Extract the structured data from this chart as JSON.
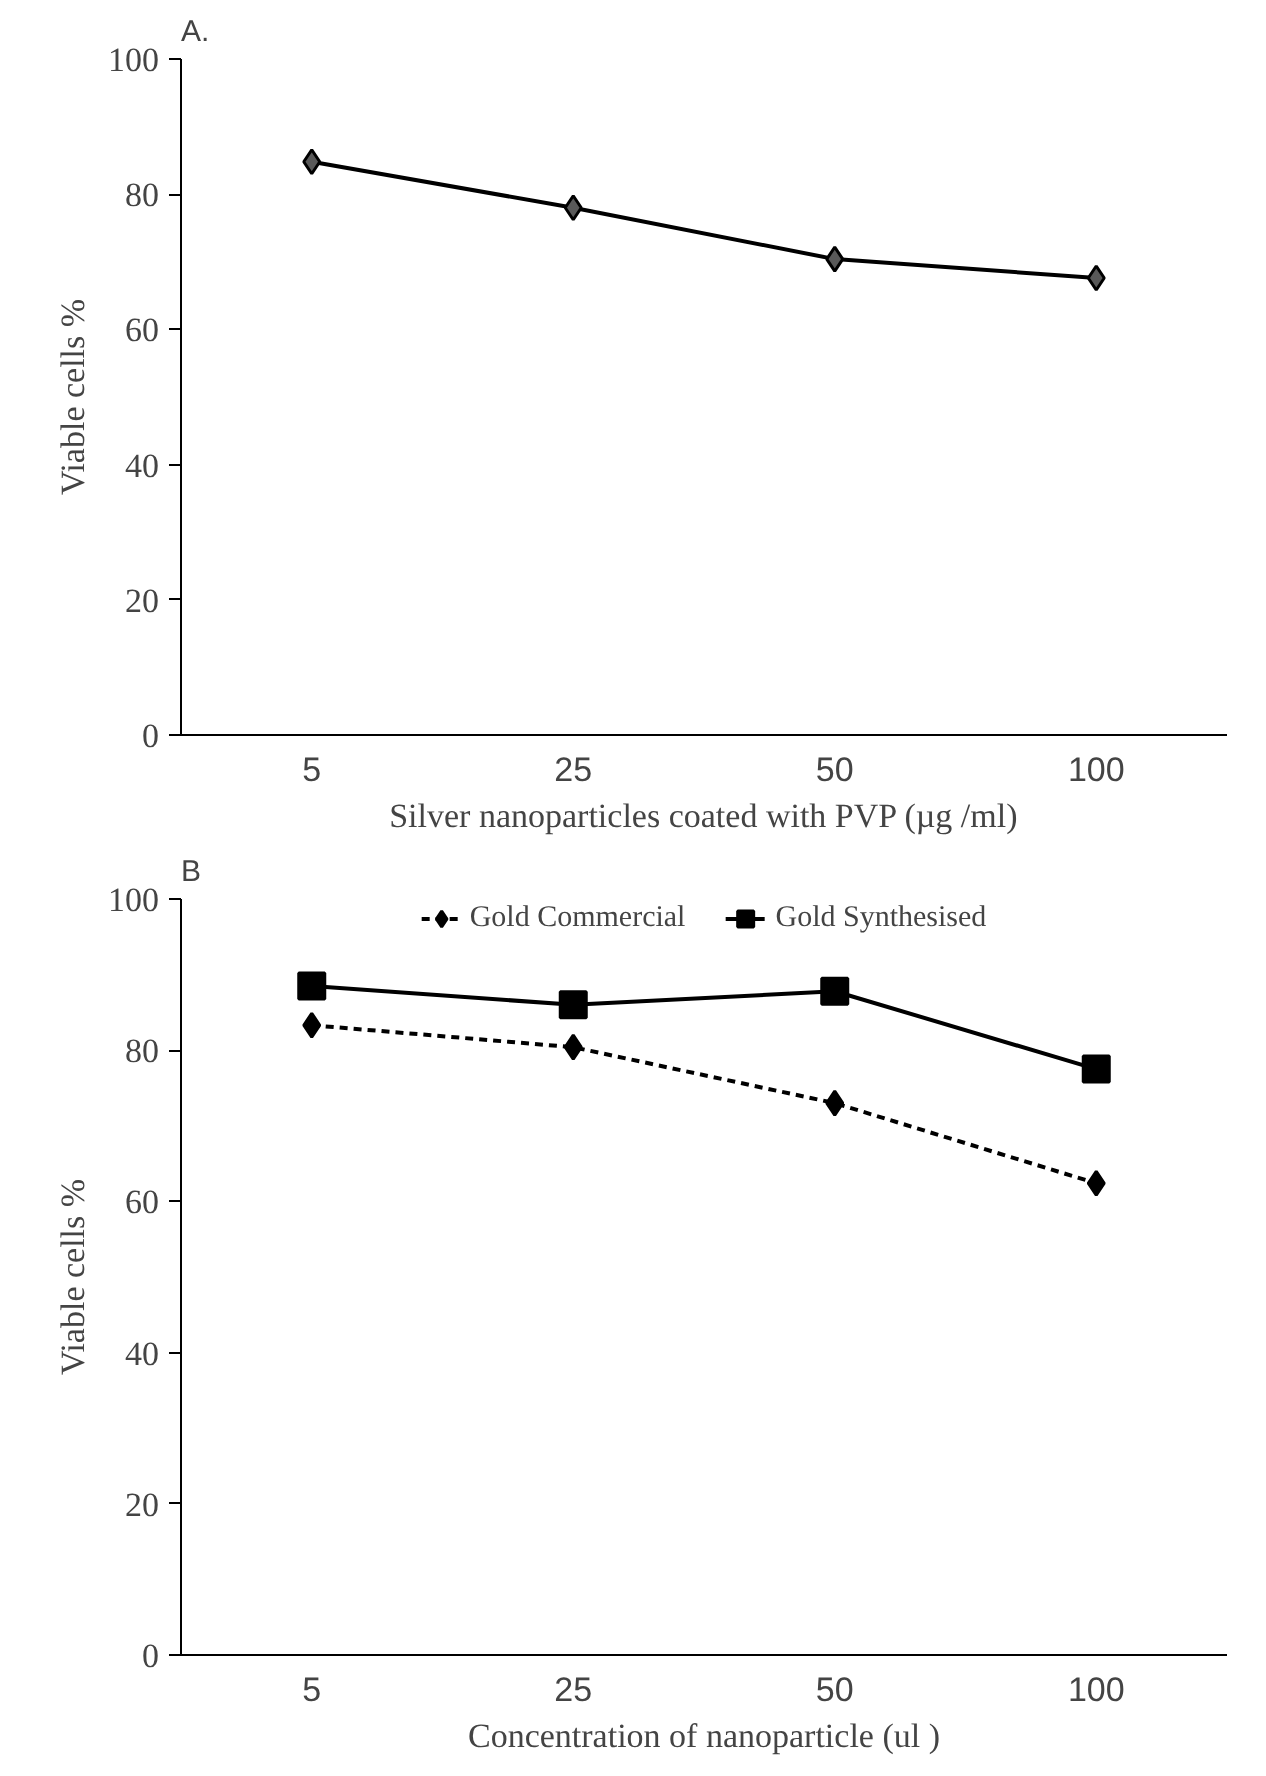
{
  "chart_data": [
    {
      "type": "line",
      "title": "A.",
      "categories": [
        "5",
        "25",
        "50",
        "100"
      ],
      "xlabel": "Silver nanoparticles coated with PVP (µg /ml)",
      "ylabel": "Viable cells %",
      "ylim": [
        0,
        100
      ],
      "yticks": [
        0,
        20,
        40,
        60,
        80,
        100
      ],
      "grid": false,
      "legend": false,
      "series": [
        {
          "color": "#000000",
          "values": [
            84.8,
            78,
            70.4,
            67.6
          ],
          "marker": "diamond",
          "line_style": "solid"
        }
      ]
    },
    {
      "type": "line",
      "title": "B",
      "categories": [
        "5",
        "25",
        "50",
        "100"
      ],
      "xlabel": "Concentration of nanoparticle (ul )",
      "ylabel": "Viable cells %",
      "ylim": [
        0,
        100
      ],
      "yticks": [
        0,
        20,
        40,
        60,
        80,
        100
      ],
      "grid": false,
      "legend": "top",
      "series": [
        {
          "name": "Gold Commercial",
          "color": "#000000",
          "values": [
            83.3,
            80.4,
            73,
            62.4
          ],
          "marker": "diamond",
          "line_style": "dashed"
        },
        {
          "name": "Gold Synthesised",
          "color": "#000000",
          "values": [
            88.5,
            86,
            87.8,
            77.5
          ],
          "marker": "square",
          "line_style": "solid"
        }
      ]
    }
  ]
}
